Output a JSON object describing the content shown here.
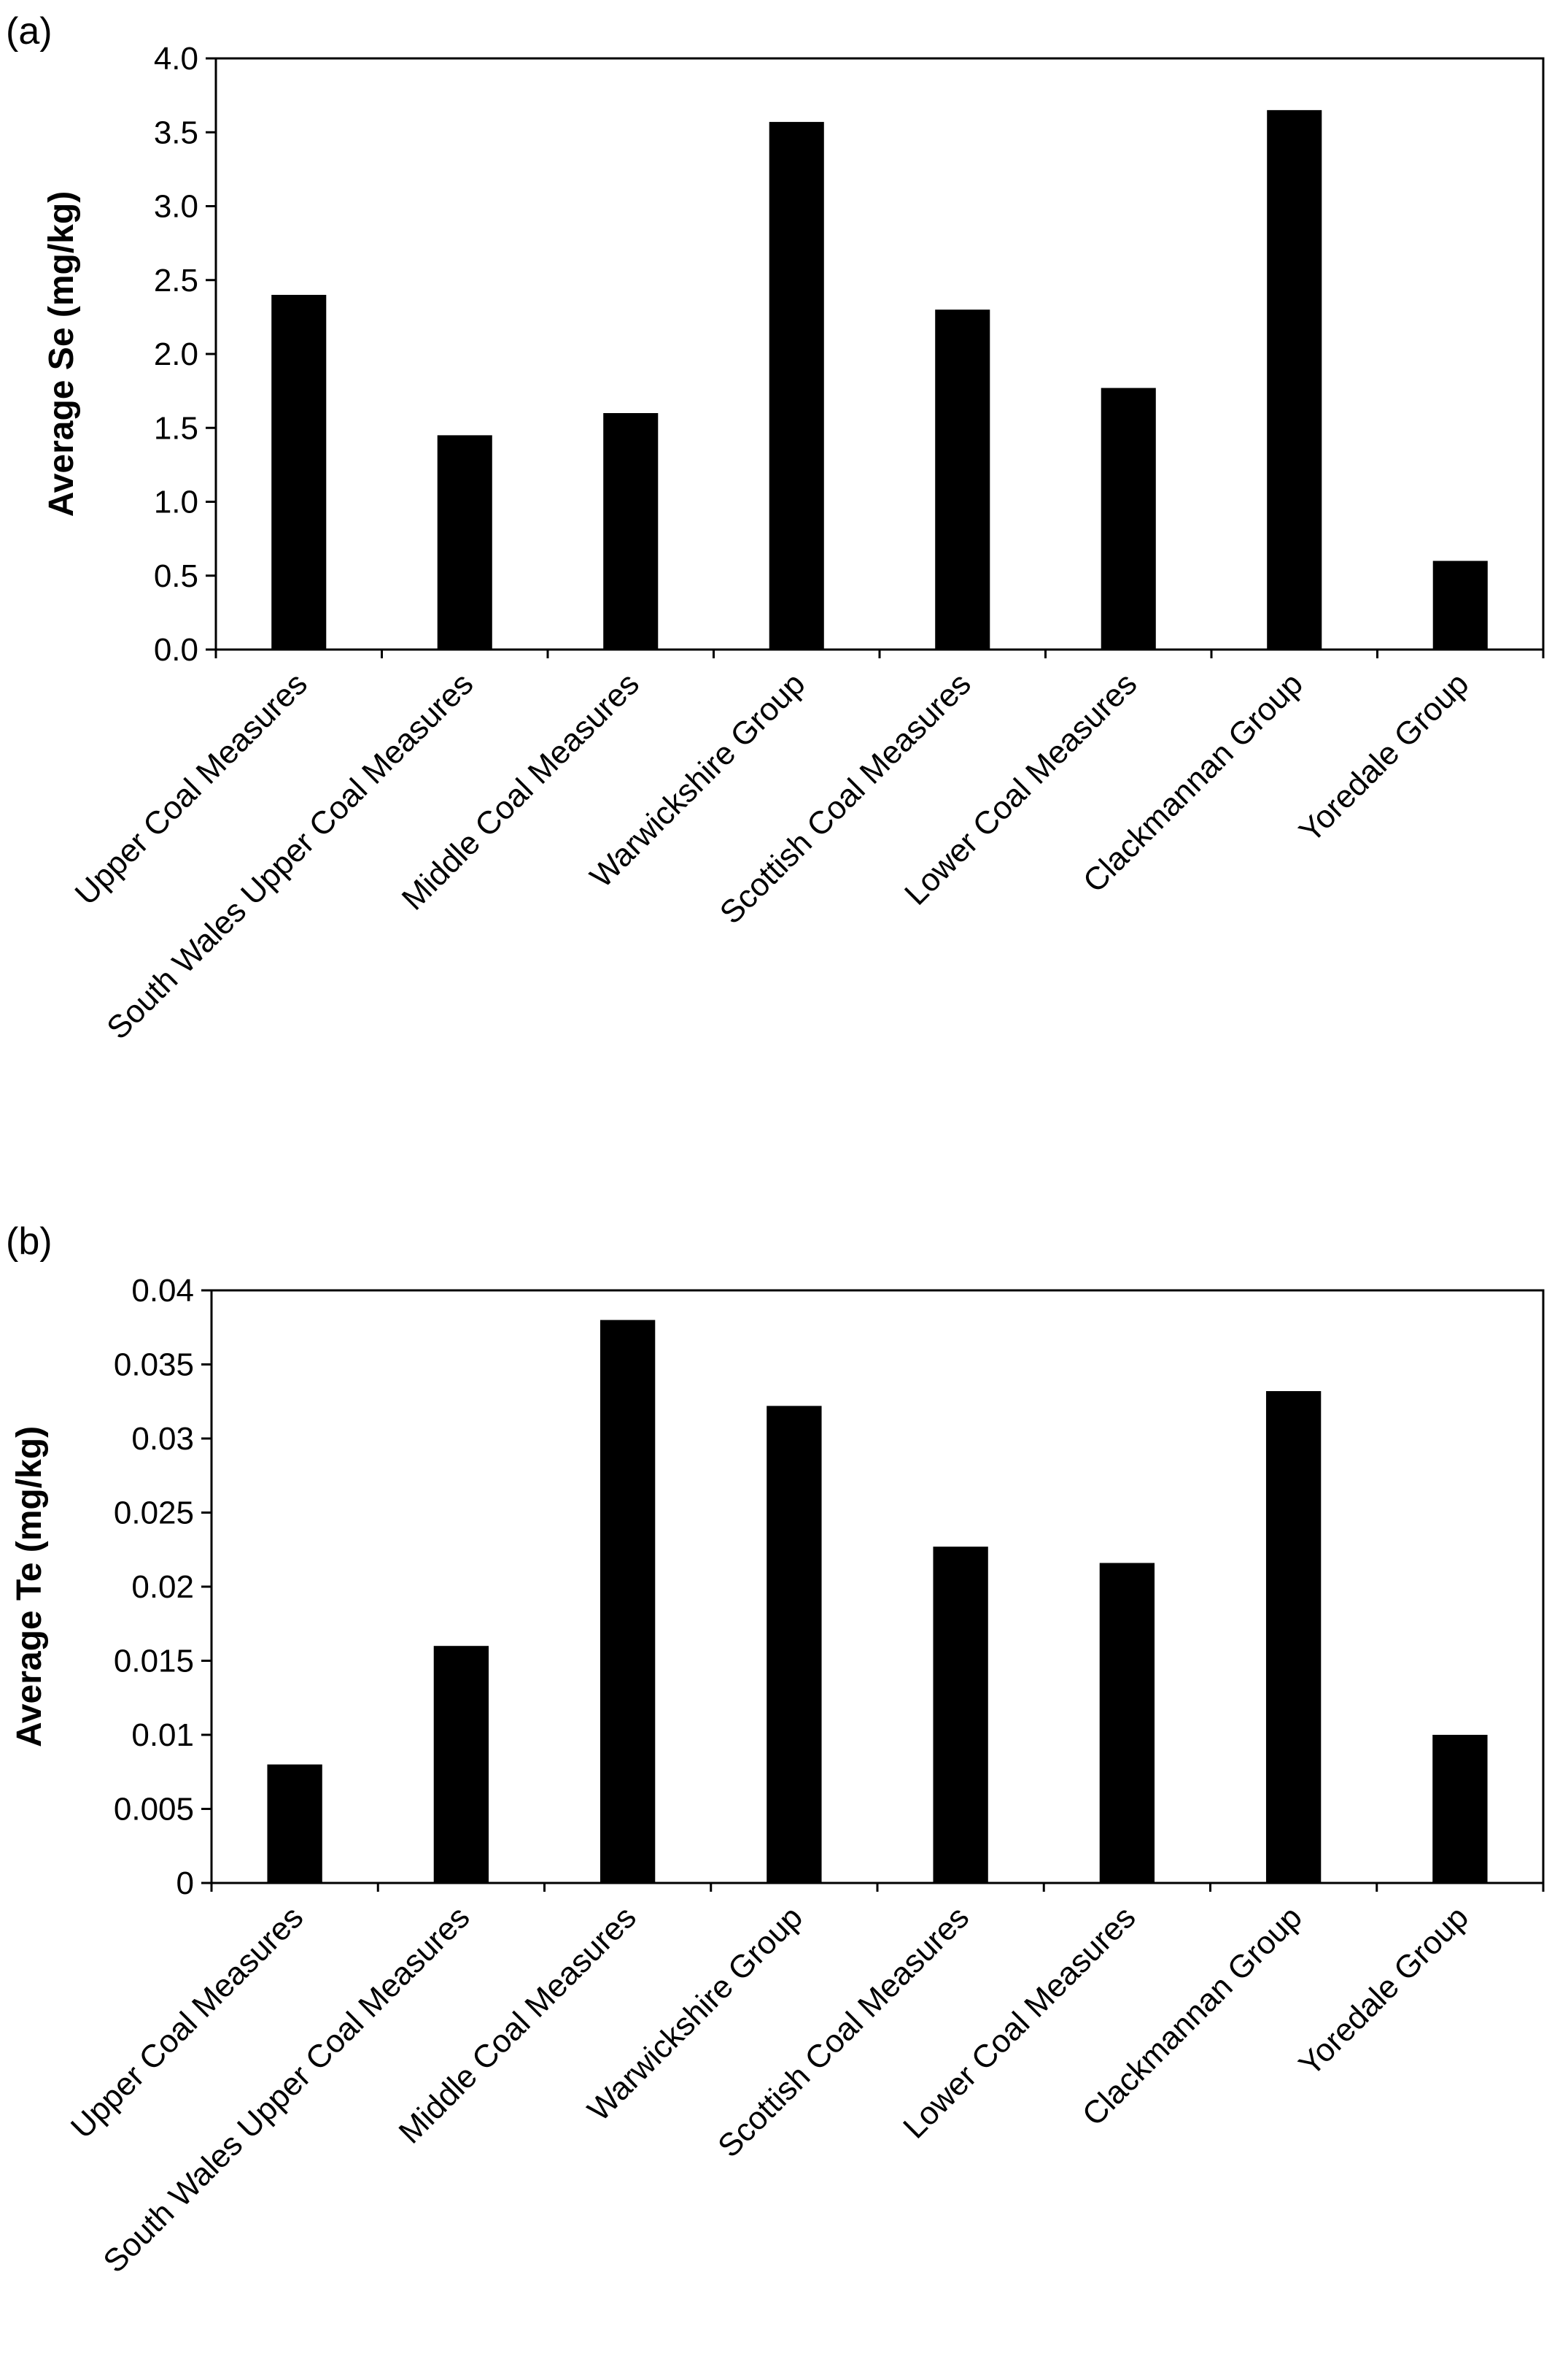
{
  "chart_data": [
    {
      "panel_label": "(a)",
      "type": "bar",
      "ylabel": "Average Se (mg/kg)",
      "categories": [
        "Upper Coal Measures",
        "South Wales Upper Coal Measures",
        "Middle Coal Measures",
        "Warwickshire Group",
        "Scottish Coal Measures",
        "Lower Coal Measures",
        "Clackmannan Group",
        "Yoredale Group"
      ],
      "values": [
        2.4,
        1.45,
        1.6,
        3.57,
        2.3,
        1.77,
        3.65,
        0.6
      ],
      "ylim": [
        0,
        4
      ],
      "yticks": [
        "0.0",
        "0.5",
        "1.0",
        "1.5",
        "2.0",
        "2.5",
        "3.0",
        "3.5",
        "4.0"
      ],
      "bar_color": "#000000",
      "grid": false
    },
    {
      "panel_label": "(b)",
      "type": "bar",
      "ylabel": "Average Te (mg/kg)",
      "categories": [
        "Upper Coal Measures",
        "South Wales Upper Coal Measures",
        "Middle Coal Measures",
        "Warwickshire Group",
        "Scottish Coal Measures",
        "Lower Coal Measures",
        "Clackmannan Group",
        "Yoredale Group"
      ],
      "values": [
        0.008,
        0.016,
        0.038,
        0.0322,
        0.0227,
        0.0216,
        0.0332,
        0.01
      ],
      "ylim": [
        0,
        0.04
      ],
      "yticks": [
        "0",
        "0.005",
        "0.01",
        "0.015",
        "0.02",
        "0.025",
        "0.03",
        "0.035",
        "0.04"
      ],
      "bar_color": "#000000",
      "grid": false
    }
  ]
}
